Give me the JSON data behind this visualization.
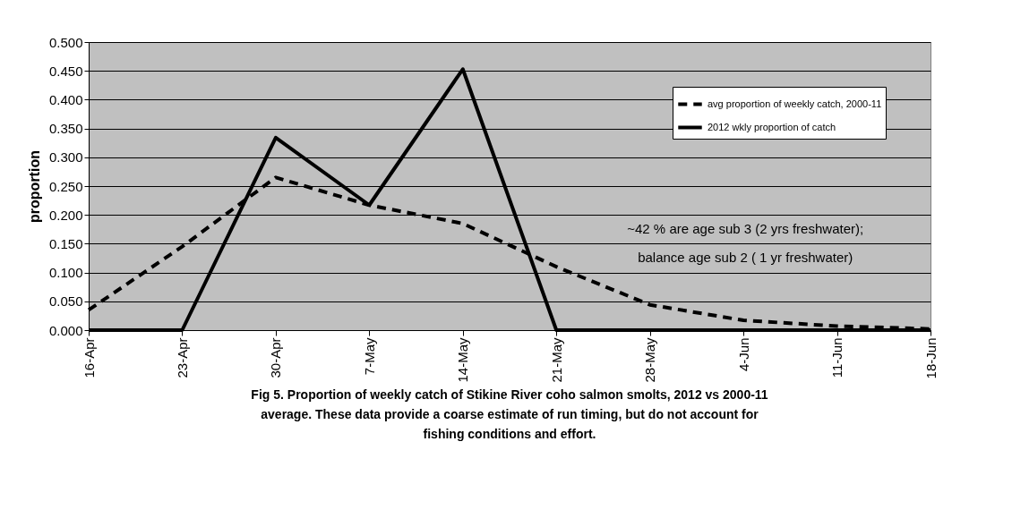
{
  "chart_data": {
    "type": "line",
    "ylabel": "proportion",
    "categories": [
      "16-Apr",
      "23-Apr",
      "30-Apr",
      "7-May",
      "14-May",
      "21-May",
      "28-May",
      "4-Jun",
      "11-Jun",
      "18-Jun"
    ],
    "series": [
      {
        "name": "avg proportion of weekly catch, 2000-11",
        "color": "#000000",
        "line_style": "dashed",
        "values": [
          0.035,
          0.145,
          0.265,
          0.217,
          0.185,
          0.11,
          0.044,
          0.017,
          0.007,
          0.002
        ]
      },
      {
        "name": "2012 wkly proportion of catch",
        "color": "#000000",
        "line_style": "solid",
        "values": [
          0,
          0,
          0.334,
          0.217,
          0.453,
          0,
          0,
          0,
          0,
          0
        ]
      }
    ],
    "ylim": [
      0,
      0.5
    ],
    "yticks": [
      {
        "value": 0,
        "label": "0.000"
      },
      {
        "value": 0.05,
        "label": "0.050"
      },
      {
        "value": 0.1,
        "label": "0.100"
      },
      {
        "value": 0.15,
        "label": "0.150"
      },
      {
        "value": 0.2,
        "label": "0.200"
      },
      {
        "value": 0.25,
        "label": "0.250"
      },
      {
        "value": 0.3,
        "label": "0.300"
      },
      {
        "value": 0.35,
        "label": "0.350"
      },
      {
        "value": 0.4,
        "label": "0.400"
      },
      {
        "value": 0.45,
        "label": "0.450"
      },
      {
        "value": 0.5,
        "label": "0.500"
      }
    ],
    "grid": "y",
    "legend": "top right",
    "marker": "none",
    "annotations": [
      "~42 % are age sub 3 (2 yrs freshwater); balance age sub 2 ( 1 yr freshwater)",
      "Fig 5.  Proportion of weekly catch of Stikine River coho salmon smolts, 2012 vs 2000-11 average. These data provide a coarse estimate of run timing, but do not account for fishing conditions and effort."
    ]
  }
}
